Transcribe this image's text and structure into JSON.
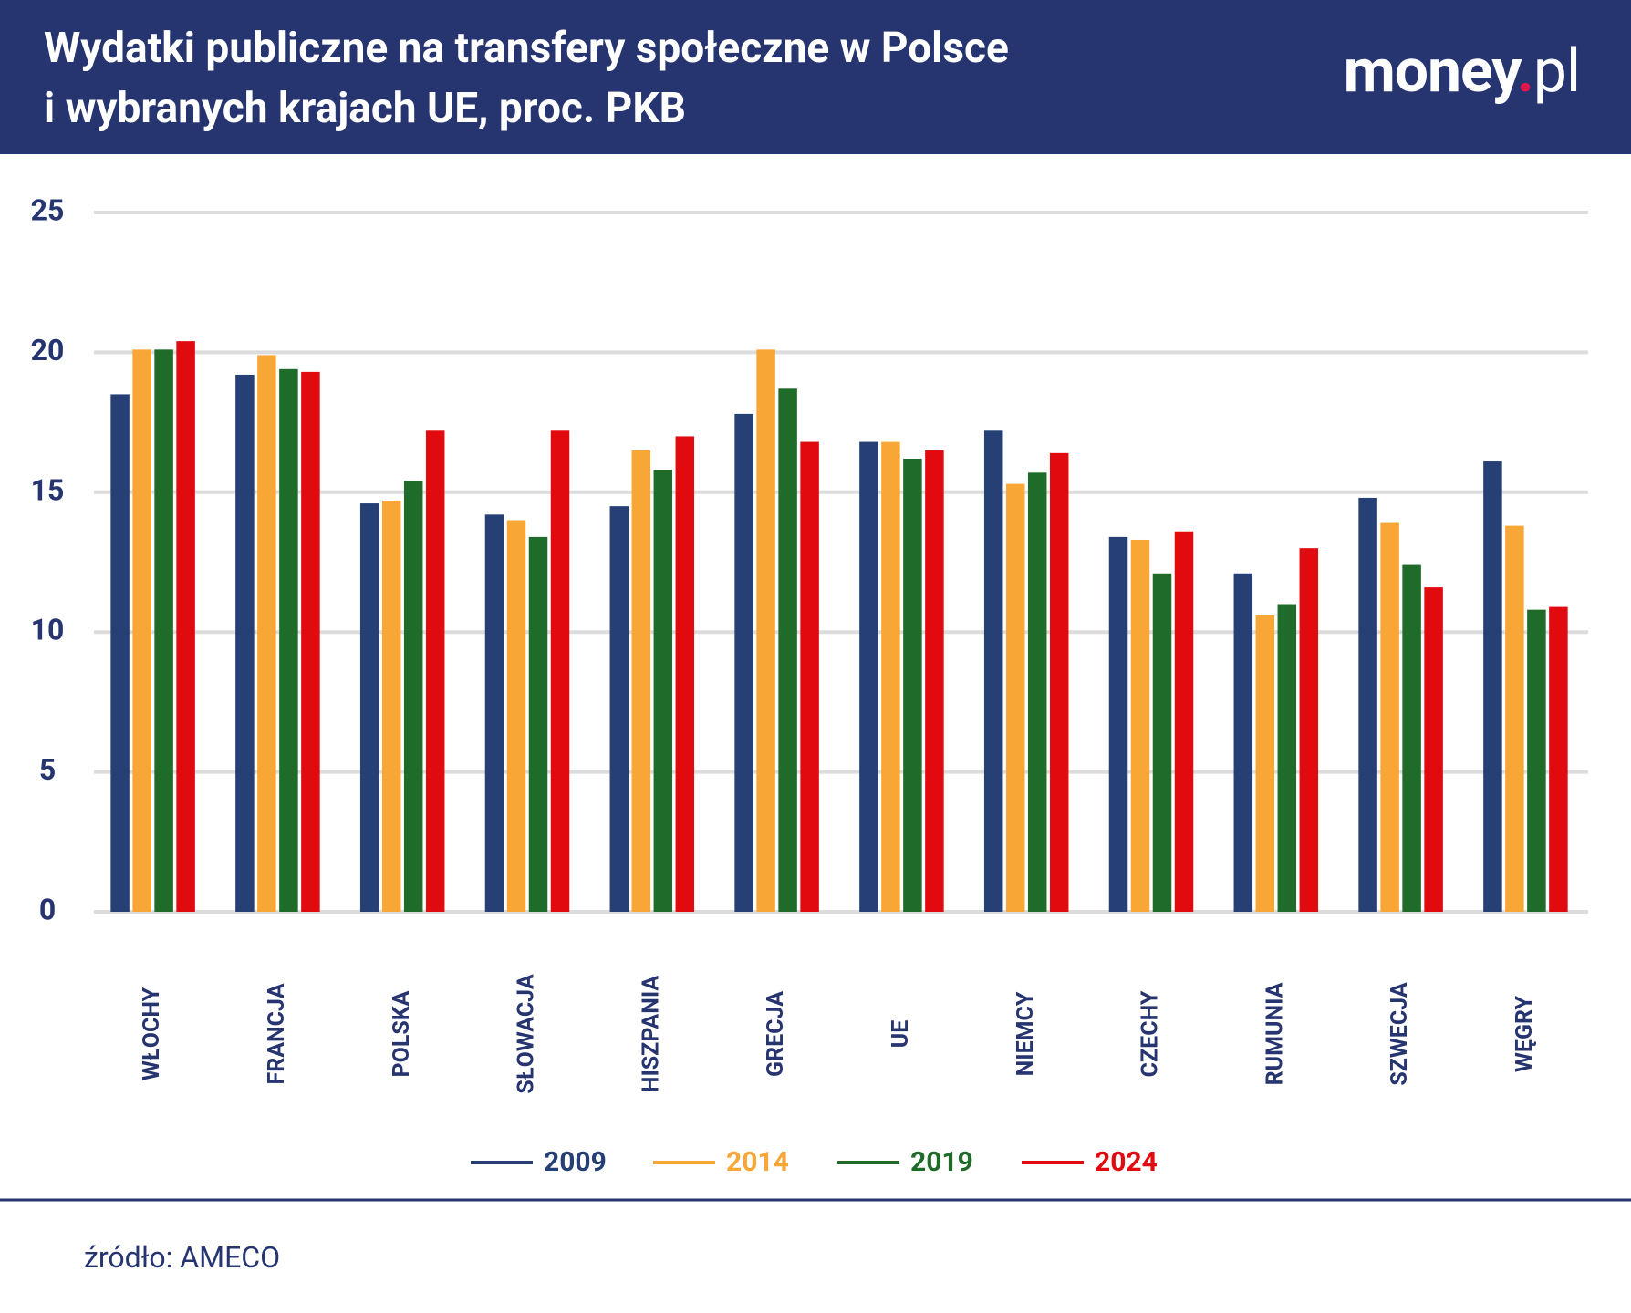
{
  "title": [
    "Wydatki publiczne na transfery społeczne w Polsce",
    "i wybranych krajach UE, proc. PKB"
  ],
  "logo": [
    "money",
    ".",
    "pl"
  ],
  "source": "źródło: AMECO",
  "chart_data": {
    "type": "bar",
    "categories": [
      "WŁOCHY",
      "FRANCJA",
      "POLSKA",
      "SŁOWACJA",
      "HISZPANIA",
      "GRECJA",
      "UE",
      "NIEMCY",
      "CZECHY",
      "RUMUNIA",
      "SZWECJA",
      "WĘGRY"
    ],
    "series": [
      {
        "name": "2009",
        "color": "#263f75",
        "values": [
          18.5,
          19.2,
          14.6,
          14.2,
          14.5,
          17.8,
          16.8,
          17.2,
          13.4,
          12.1,
          14.8,
          16.1
        ]
      },
      {
        "name": "2014",
        "color": "#f8a737",
        "values": [
          20.1,
          19.9,
          14.7,
          14.0,
          16.5,
          20.1,
          16.8,
          15.3,
          13.3,
          10.6,
          13.9,
          13.8
        ]
      },
      {
        "name": "2019",
        "color": "#1f6b2a",
        "values": [
          20.1,
          19.4,
          15.4,
          13.4,
          15.8,
          18.7,
          16.2,
          15.7,
          12.1,
          11.0,
          12.4,
          10.8
        ]
      },
      {
        "name": "2024",
        "color": "#e00a0f",
        "values": [
          20.4,
          19.3,
          17.2,
          17.2,
          17.0,
          16.8,
          16.5,
          16.4,
          13.6,
          13.0,
          11.6,
          10.9
        ]
      }
    ],
    "ylim": [
      0,
      25
    ],
    "yticks": [
      0,
      5,
      10,
      15,
      20,
      25
    ],
    "grid": true
  }
}
